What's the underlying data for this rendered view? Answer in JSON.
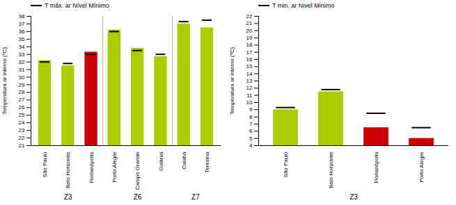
{
  "chart_data": [
    {
      "type": "bar",
      "categories": [
        "São Paulo",
        "Belo Horizonte",
        "Florianópolis",
        "Porto Alegre",
        "Campo Grande",
        "Goiânia",
        "Cuiabá",
        "Teresina"
      ],
      "zones": [
        "Z3",
        "Z3",
        "Z3",
        "Z6",
        "Z6",
        "Z6",
        "Z7",
        "Z7"
      ],
      "series": [
        {
          "type": "bar",
          "values": [
            32.2,
            31.5,
            33.3,
            36.2,
            33.8,
            32.7,
            37.0,
            36.5
          ],
          "colors": [
            "#AACC00",
            "#AACC00",
            "#CC0000",
            "#AACC00",
            "#AACC00",
            "#AACC00",
            "#AACC00",
            "#AACC00"
          ]
        },
        {
          "type": "tick",
          "name": "T máx. ar Nível Mínimo",
          "values": [
            32.0,
            31.8,
            33.0,
            36.0,
            33.5,
            33.0,
            37.3,
            37.5
          ],
          "color": "#000000"
        }
      ],
      "ylabel": "Temperatura ar interno (ºC)",
      "ylim": [
        21,
        38
      ],
      "yticks": [
        21,
        22,
        23,
        24,
        25,
        26,
        27,
        28,
        29,
        30,
        31,
        32,
        33,
        34,
        35,
        36,
        37,
        38
      ],
      "legend": "upper left",
      "grid": false
    },
    {
      "type": "bar",
      "categories": [
        "São Paulo",
        "Belo Horizonte",
        "Florianópolis",
        "Porto Alegre"
      ],
      "zones": [
        "Z3",
        "Z3",
        "Z3",
        "Z3"
      ],
      "series": [
        {
          "type": "bar",
          "values": [
            9.0,
            11.5,
            6.5,
            5.0
          ],
          "colors": [
            "#AACC00",
            "#AACC00",
            "#CC0000",
            "#CC0000"
          ]
        },
        {
          "type": "tick",
          "name": "T min. ar Nivel Minimo",
          "values": [
            9.3,
            11.8,
            8.5,
            6.5
          ],
          "color": "#000000"
        }
      ],
      "ylabel": "Temperatura ar interno (ºC)",
      "ylim": [
        4,
        22
      ],
      "yticks": [
        4,
        5,
        6,
        7,
        8,
        9,
        10,
        11,
        12,
        13,
        14,
        15,
        16,
        17,
        18,
        19,
        20,
        21,
        22
      ],
      "legend": "upper left",
      "grid": false
    }
  ]
}
